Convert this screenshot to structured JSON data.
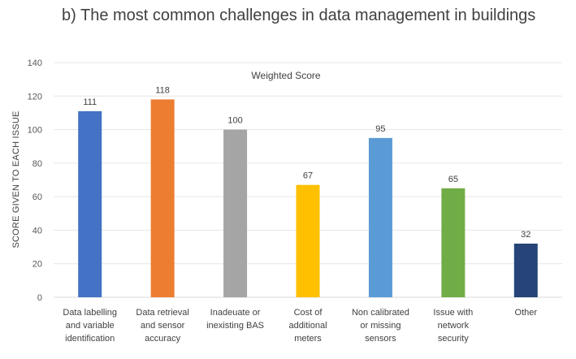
{
  "title": "b) The most common challenges in data management in buildings",
  "chart_data": {
    "type": "bar",
    "title": "b) The most common challenges in data management in buildings",
    "series_label": "Weighted Score",
    "xlabel": "",
    "ylabel": "SCORE GIVEN TO EACH ISSUE",
    "ylim": [
      0,
      140
    ],
    "yticks": [
      0,
      20,
      40,
      60,
      80,
      100,
      120,
      140
    ],
    "grid": true,
    "categories": [
      [
        "Data labelling",
        "and variable",
        "identification"
      ],
      [
        "Data retrieval",
        "and sensor",
        "accuracy"
      ],
      [
        "Inadeuate or",
        "inexisting BAS"
      ],
      [
        "Cost of",
        "additional",
        "meters"
      ],
      [
        "Non calibrated",
        "or missing",
        "sensors"
      ],
      [
        "Issue with",
        "network",
        "security"
      ],
      [
        "Other"
      ]
    ],
    "values": [
      111,
      118,
      100,
      67,
      95,
      65,
      32
    ],
    "colors": [
      "#4472C4",
      "#ED7D31",
      "#A5A5A5",
      "#FFC000",
      "#5B9BD5",
      "#70AD47",
      "#264478"
    ]
  }
}
